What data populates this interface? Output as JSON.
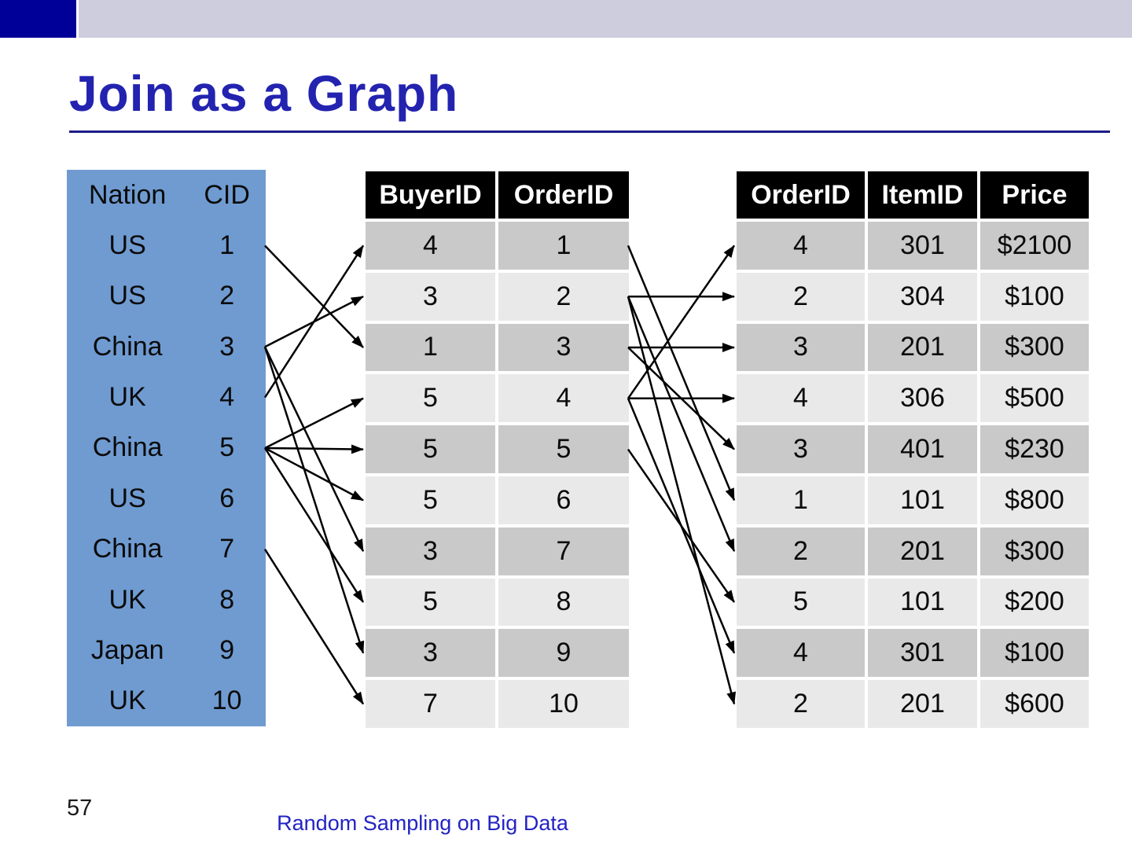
{
  "slide": {
    "title": "Join as a Graph",
    "page_number": "57",
    "footer": "Random Sampling on Big Data"
  },
  "colors": {
    "accent_square": "#000099",
    "banner": "#cdcdde",
    "title_text": "#2323b0",
    "title_rule": "#1b1b86",
    "customer_table_bg": "#6f9bd1",
    "header_row_bg": "#000000",
    "header_row_text": "#ffffff",
    "row_dark": "#c9c9c9",
    "row_light": "#e9e9e9",
    "arrow": "#000000",
    "footer_text": "#2323c3"
  },
  "tables": {
    "customers": {
      "columns": [
        "Nation",
        "CID"
      ],
      "rows": [
        [
          "US",
          "1"
        ],
        [
          "US",
          "2"
        ],
        [
          "China",
          "3"
        ],
        [
          "UK",
          "4"
        ],
        [
          "China",
          "5"
        ],
        [
          "US",
          "6"
        ],
        [
          "China",
          "7"
        ],
        [
          "UK",
          "8"
        ],
        [
          "Japan",
          "9"
        ],
        [
          "UK",
          "10"
        ]
      ]
    },
    "orders": {
      "columns": [
        "BuyerID",
        "OrderID"
      ],
      "rows": [
        [
          "4",
          "1"
        ],
        [
          "3",
          "2"
        ],
        [
          "1",
          "3"
        ],
        [
          "5",
          "4"
        ],
        [
          "5",
          "5"
        ],
        [
          "5",
          "6"
        ],
        [
          "3",
          "7"
        ],
        [
          "5",
          "8"
        ],
        [
          "3",
          "9"
        ],
        [
          "7",
          "10"
        ]
      ]
    },
    "items": {
      "columns": [
        "OrderID",
        "ItemID",
        "Price"
      ],
      "rows": [
        [
          "4",
          "301",
          "$2100"
        ],
        [
          "2",
          "304",
          "$100"
        ],
        [
          "3",
          "201",
          "$300"
        ],
        [
          "4",
          "306",
          "$500"
        ],
        [
          "3",
          "401",
          "$230"
        ],
        [
          "1",
          "101",
          "$800"
        ],
        [
          "2",
          "201",
          "$300"
        ],
        [
          "5",
          "101",
          "$200"
        ],
        [
          "4",
          "301",
          "$100"
        ],
        [
          "2",
          "201",
          "$600"
        ]
      ]
    }
  },
  "edges": {
    "customer_to_order": [
      [
        1,
        3
      ],
      [
        3,
        2
      ],
      [
        3,
        7
      ],
      [
        3,
        9
      ],
      [
        4,
        1
      ],
      [
        5,
        4
      ],
      [
        5,
        5
      ],
      [
        5,
        6
      ],
      [
        5,
        8
      ],
      [
        7,
        10
      ]
    ],
    "order_to_item": [
      [
        1,
        6
      ],
      [
        2,
        2
      ],
      [
        2,
        7
      ],
      [
        2,
        10
      ],
      [
        3,
        3
      ],
      [
        3,
        5
      ],
      [
        4,
        1
      ],
      [
        4,
        4
      ],
      [
        4,
        9
      ],
      [
        5,
        8
      ]
    ]
  }
}
